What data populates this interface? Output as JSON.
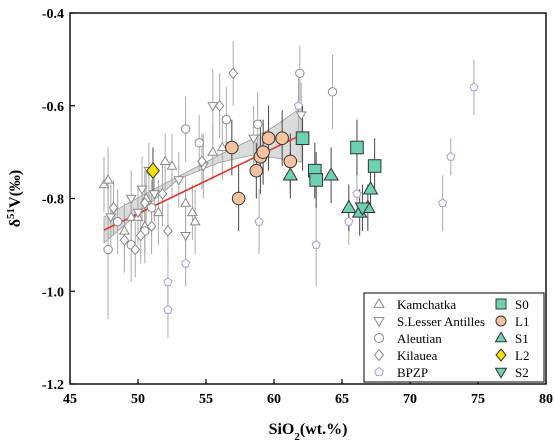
{
  "chart_data": {
    "type": "scatter",
    "xlabel_main": "SiO",
    "xlabel_sub": "2",
    "xlabel_rest": "(wt.%)",
    "ylabel_delta": "δ",
    "ylabel_sup": "51",
    "ylabel_rest": "V(‰)",
    "xlim": [
      45,
      80
    ],
    "ylim": [
      -1.2,
      -0.4
    ],
    "xticks": [
      45,
      50,
      55,
      60,
      65,
      70,
      75,
      80
    ],
    "yticks": [
      -1.2,
      -1.0,
      -0.8,
      -0.6,
      -0.4
    ],
    "ytick_labels": [
      "-1.2",
      "-1.0",
      "-0.8",
      "-0.6",
      "-0.4"
    ],
    "regression": {
      "color": "#e0352b",
      "x": [
        47.5,
        62.0
      ],
      "y": [
        -0.868,
        -0.663
      ],
      "ci_upper": [
        [
          47.5,
          -0.84
        ],
        [
          50,
          -0.798
        ],
        [
          53,
          -0.752
        ],
        [
          56,
          -0.706
        ],
        [
          58.5,
          -0.67
        ],
        [
          60,
          -0.645
        ],
        [
          62,
          -0.604
        ]
      ],
      "ci_lower": [
        [
          62,
          -0.722
        ],
        [
          60,
          -0.712
        ],
        [
          58.5,
          -0.706
        ],
        [
          56,
          -0.722
        ],
        [
          53,
          -0.758
        ],
        [
          50,
          -0.832
        ],
        [
          47.5,
          -0.896
        ]
      ]
    },
    "legend": {
      "left": [
        {
          "label": "Kamchatka",
          "marker": "triangle-up",
          "color": "#8a8a8a"
        },
        {
          "label": "S.Lesser Antilles",
          "marker": "triangle-down",
          "color": "#8a8a8a"
        },
        {
          "label": "Aleutian",
          "marker": "circle",
          "color": "#8a8a8a"
        },
        {
          "label": "Kilauea",
          "marker": "diamond",
          "color": "#8a8a8a"
        },
        {
          "label": "BPZP",
          "marker": "pentagon",
          "color": "#a89fd9"
        }
      ],
      "right": [
        {
          "label": "S0",
          "marker": "square",
          "color": "#6fd1b4"
        },
        {
          "label": "L1",
          "marker": "circle",
          "color": "#f6c29f"
        },
        {
          "label": "S1",
          "marker": "triangle-up",
          "color": "#6fd1b4"
        },
        {
          "label": "L2",
          "marker": "diamond",
          "color": "#f4e300"
        },
        {
          "label": "S2",
          "marker": "triangle-down",
          "color": "#6fd1b4"
        }
      ]
    },
    "series": [
      {
        "name": "Kamchatka",
        "marker": "triangle-up",
        "color": "#8a8a8a",
        "open": true,
        "points": [
          [
            47.5,
            -0.77
          ],
          [
            47.8,
            -0.76
          ],
          [
            49.5,
            -0.84
          ],
          [
            50.0,
            -0.84
          ],
          [
            50.5,
            -0.86
          ],
          [
            51.5,
            -0.83
          ],
          [
            52.0,
            -0.72
          ],
          [
            52.5,
            -0.73
          ],
          [
            53.5,
            -0.81
          ],
          [
            54.0,
            -0.83
          ],
          [
            54.2,
            -0.85
          ],
          [
            55.5,
            -0.7
          ],
          [
            56.2,
            -0.69
          ],
          [
            50.6,
            -0.8
          ],
          [
            49.0,
            -0.87
          ]
        ],
        "errors": [
          0.06,
          0.07,
          0.05,
          0.06,
          0.06,
          0.07,
          0.06,
          0.07,
          0.06,
          0.06,
          0.07,
          0.06,
          0.07,
          0.06,
          0.06
        ]
      },
      {
        "name": "S.Lesser Antilles",
        "marker": "triangle-down",
        "color": "#8a8a8a",
        "open": true,
        "points": [
          [
            48.0,
            -0.84
          ],
          [
            49.5,
            -0.8
          ],
          [
            50.3,
            -0.78
          ],
          [
            50.8,
            -0.74
          ],
          [
            53.5,
            -0.88
          ],
          [
            53.0,
            -0.76
          ],
          [
            55.5,
            -0.6
          ],
          [
            54.8,
            -0.73
          ],
          [
            58.5,
            -0.67
          ],
          [
            62.0,
            -0.62
          ],
          [
            50.0,
            -0.83
          ],
          [
            51.2,
            -0.79
          ]
        ],
        "errors": [
          0.07,
          0.06,
          0.07,
          0.06,
          0.07,
          0.06,
          0.08,
          0.07,
          0.07,
          0.07,
          0.06,
          0.06
        ]
      },
      {
        "name": "Aleutian",
        "marker": "circle",
        "color": "#8a8a8a",
        "open": true,
        "points": [
          [
            47.8,
            -0.91
          ],
          [
            48.5,
            -0.85
          ],
          [
            49.5,
            -0.9
          ],
          [
            51.0,
            -0.82
          ],
          [
            53.5,
            -0.65
          ],
          [
            54.5,
            -0.68
          ],
          [
            56.5,
            -0.63
          ],
          [
            58.8,
            -0.64
          ],
          [
            61.9,
            -0.53
          ],
          [
            64.3,
            -0.57
          ],
          [
            50.5,
            -0.87
          ]
        ],
        "errors": [
          0.15,
          0.07,
          0.08,
          0.06,
          0.07,
          0.06,
          0.07,
          0.07,
          0.06,
          0.08,
          0.07
        ]
      },
      {
        "name": "Kilauea",
        "marker": "diamond",
        "color": "#8a8a8a",
        "open": true,
        "points": [
          [
            48.2,
            -0.82
          ],
          [
            49.0,
            -0.89
          ],
          [
            49.8,
            -0.91
          ],
          [
            50.5,
            -0.81
          ],
          [
            51.0,
            -0.86
          ],
          [
            51.8,
            -0.79
          ],
          [
            52.2,
            -0.87
          ],
          [
            57.0,
            -0.53
          ],
          [
            56.0,
            -0.6
          ],
          [
            54.7,
            -0.72
          ],
          [
            50.2,
            -0.88
          ]
        ],
        "errors": [
          0.06,
          0.07,
          0.06,
          0.07,
          0.06,
          0.07,
          0.06,
          0.07,
          0.07,
          0.06,
          0.06
        ]
      },
      {
        "name": "BPZP",
        "marker": "pentagon",
        "color": "#a89fd9",
        "open": true,
        "points": [
          [
            52.2,
            -0.98
          ],
          [
            52.2,
            -1.04
          ],
          [
            53.5,
            -0.94
          ],
          [
            58.9,
            -0.85
          ],
          [
            61.8,
            -0.6
          ],
          [
            63.1,
            -0.9
          ],
          [
            65.5,
            -0.85
          ],
          [
            66.1,
            -0.79
          ],
          [
            72.4,
            -0.81
          ],
          [
            73.0,
            -0.71
          ],
          [
            74.7,
            -0.56
          ]
        ],
        "errors": [
          0.07,
          0.06,
          0.05,
          0.07,
          0.06,
          0.09,
          0.05,
          0.05,
          0.06,
          0.04,
          0.06
        ]
      },
      {
        "name": "S0",
        "marker": "square",
        "color": "#6fd1b4",
        "open": false,
        "points": [
          [
            62.1,
            -0.67
          ],
          [
            63.0,
            -0.74
          ],
          [
            63.1,
            -0.76
          ],
          [
            66.1,
            -0.69
          ],
          [
            67.4,
            -0.73
          ]
        ],
        "errors": [
          0.07,
          0.06,
          0.06,
          0.06,
          0.06
        ]
      },
      {
        "name": "L1",
        "marker": "circle",
        "color": "#f6c29f",
        "open": false,
        "points": [
          [
            56.9,
            -0.69
          ],
          [
            57.4,
            -0.8
          ],
          [
            58.7,
            -0.74
          ],
          [
            59.0,
            -0.71
          ],
          [
            59.2,
            -0.7
          ],
          [
            59.6,
            -0.67
          ],
          [
            60.6,
            -0.67
          ],
          [
            61.2,
            -0.72
          ]
        ],
        "errors": [
          0.06,
          0.07,
          0.06,
          0.08,
          0.07,
          0.07,
          0.06,
          0.06
        ]
      },
      {
        "name": "S1",
        "marker": "triangle-up",
        "color": "#6fd1b4",
        "open": false,
        "points": [
          [
            61.2,
            -0.75
          ],
          [
            64.2,
            -0.75
          ],
          [
            65.5,
            -0.82
          ],
          [
            66.3,
            -0.83
          ],
          [
            66.9,
            -0.82
          ],
          [
            67.1,
            -0.78
          ]
        ],
        "errors": [
          0.05,
          0.06,
          0.05,
          0.05,
          0.05,
          0.05
        ]
      },
      {
        "name": "L2",
        "marker": "diamond",
        "color": "#f4e300",
        "open": false,
        "points": [
          [
            51.1,
            -0.74
          ]
        ],
        "errors": [
          0.05
        ]
      },
      {
        "name": "S2",
        "marker": "triangle-down",
        "color": "#6fd1b4",
        "open": false,
        "points": [
          [
            66.5,
            -0.82
          ]
        ],
        "errors": [
          0.05
        ]
      }
    ]
  }
}
